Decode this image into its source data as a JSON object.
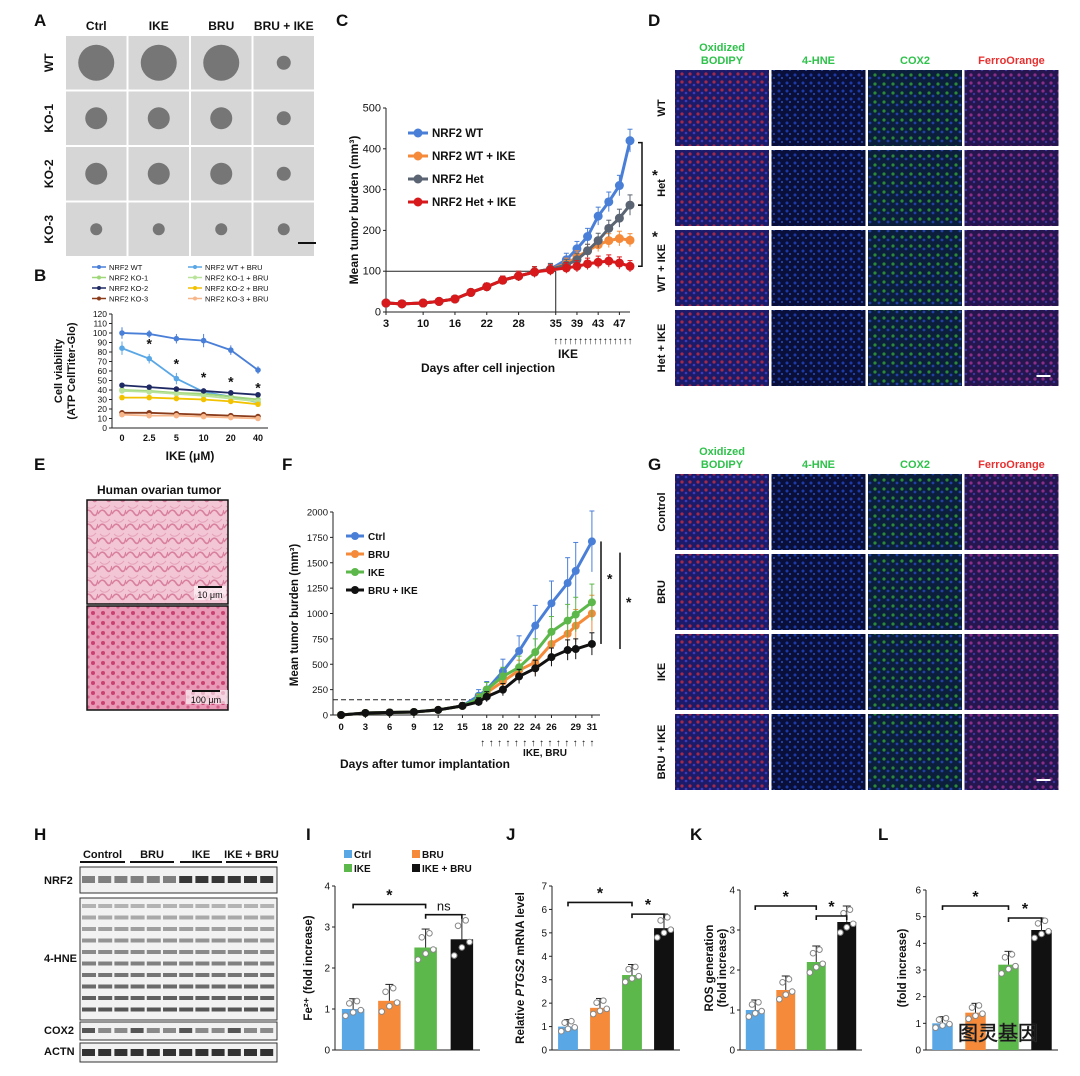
{
  "panel_letters": [
    "A",
    "B",
    "C",
    "D",
    "E",
    "F",
    "G",
    "H",
    "I",
    "J",
    "K",
    "L"
  ],
  "colors": {
    "blue": "#4a7fd8",
    "lightblue": "#5aa7e6",
    "orange": "#f58b3a",
    "gray": "#5a6472",
    "red": "#d7191c",
    "green": "#5cb84a",
    "black": "#111111",
    "yellow": "#f2c100",
    "navy": "#1f2a64",
    "brown": "#8a3b1a",
    "lightgreen": "#9fd67a",
    "peach": "#f7b58a",
    "bar_blue": "#5aa7e6",
    "bar_orange": "#f58b3a",
    "bar_green": "#5cb84a",
    "bar_black": "#111111"
  },
  "panelA": {
    "columns": [
      "Ctrl",
      "IKE",
      "BRU",
      "BRU + IKE"
    ],
    "rows": [
      "WT",
      "KO-1",
      "KO-2",
      "KO-3"
    ],
    "image_descriptions": "spheroid brightfield micrographs"
  },
  "panelD": {
    "columns": [
      "Oxidized BODIPY",
      "4-HNE",
      "COX2",
      "FerroOrange"
    ],
    "column_lines": [
      [
        "Oxidized",
        "BODIPY"
      ],
      [
        "4-HNE"
      ],
      [
        "COX2"
      ],
      [
        "FerroOrange"
      ]
    ],
    "rows": [
      "WT",
      "Het",
      "WT + IKE",
      "Het + IKE"
    ]
  },
  "panelE": {
    "title": "Human ovarian tumor",
    "scalebars": [
      "10 μm",
      "100 μm"
    ]
  },
  "panelG": {
    "columns": [
      "Oxidized BODIPY",
      "4-HNE",
      "COX2",
      "FerroOrange"
    ],
    "column_lines": [
      [
        "Oxidized",
        "BODIPY"
      ],
      [
        "4-HNE"
      ],
      [
        "COX2"
      ],
      [
        "FerroOrange"
      ]
    ],
    "rows": [
      "Control",
      "BRU",
      "IKE",
      "BRU + IKE"
    ]
  },
  "panelH": {
    "groups": [
      "Control",
      "BRU",
      "IKE",
      "IKE + BRU"
    ],
    "bands": [
      "NRF2",
      "4-HNE",
      "COX2",
      "ACTN"
    ]
  },
  "watermark": "图灵基因",
  "chart_data": [
    {
      "panel": "B",
      "type": "line",
      "x": [
        0,
        2.5,
        5,
        10,
        20,
        40
      ],
      "categories": [
        "0",
        "2.5",
        "5",
        "10",
        "20",
        "40"
      ],
      "xlabel": "IKE (μM)",
      "ylabel_lines": [
        "Cell viability",
        "(ATP CellTiter-Glo)"
      ],
      "ylim": [
        0,
        120
      ],
      "yticks": [
        0,
        10,
        20,
        30,
        40,
        50,
        60,
        70,
        80,
        90,
        100,
        110,
        120
      ],
      "legend_cols": [
        [
          "NRF2 WT",
          "NRF2 KO-1",
          "NRF2 KO-2",
          "NRF2 KO-3"
        ],
        [
          "NRF2 WT + BRU",
          "NRF2 KO-1 + BRU",
          "NRF2 KO-2 + BRU",
          "NRF2 KO-3 + BRU"
        ]
      ],
      "series": [
        {
          "name": "NRF2 WT",
          "color": "#4a7fd8",
          "values": [
            100,
            99,
            94,
            92,
            82,
            61
          ],
          "err": [
            6,
            4,
            5,
            7,
            5,
            4
          ]
        },
        {
          "name": "NRF2 WT + BRU",
          "color": "#5aa7e6",
          "values": [
            84,
            73,
            52,
            38,
            33,
            27
          ],
          "err": [
            7,
            5,
            6,
            3,
            3,
            3
          ]
        },
        {
          "name": "NRF2 KO-1",
          "color": "#9fd67a",
          "values": [
            40,
            39,
            37,
            36,
            33,
            30
          ],
          "err": [
            2,
            2,
            2,
            2,
            2,
            2
          ]
        },
        {
          "name": "NRF2 KO-1 + BRU",
          "color": "#b9e29a",
          "values": [
            39,
            38,
            36,
            34,
            31,
            28
          ],
          "err": [
            2,
            2,
            2,
            2,
            2,
            2
          ]
        },
        {
          "name": "NRF2 KO-2",
          "color": "#1f2a64",
          "values": [
            45,
            43,
            41,
            39,
            37,
            35
          ],
          "err": [
            2,
            2,
            2,
            2,
            2,
            2
          ]
        },
        {
          "name": "NRF2 KO-2 + BRU",
          "color": "#f2c100",
          "values": [
            32,
            32,
            31,
            30,
            28,
            25
          ],
          "err": [
            2,
            2,
            2,
            2,
            2,
            2
          ]
        },
        {
          "name": "NRF2 KO-3",
          "color": "#8a3b1a",
          "values": [
            16,
            16,
            15,
            14,
            13,
            12
          ],
          "err": [
            1,
            1,
            1,
            1,
            1,
            1
          ]
        },
        {
          "name": "NRF2 KO-3 + BRU",
          "color": "#f7b58a",
          "values": [
            14,
            13,
            13,
            12,
            11,
            10
          ],
          "err": [
            1,
            1,
            1,
            1,
            1,
            1
          ]
        }
      ],
      "annotations": [
        "*",
        "*",
        "*",
        "*",
        "*"
      ]
    },
    {
      "panel": "C",
      "type": "line",
      "x": [
        3,
        6,
        10,
        13,
        16,
        19,
        22,
        25,
        28,
        31,
        34,
        37,
        39,
        41,
        43,
        45,
        47,
        49
      ],
      "xtick_labels": [
        "3",
        "10",
        "16",
        "22",
        "28",
        "35",
        "39",
        "43",
        "47"
      ],
      "xtick_values": [
        3,
        10,
        16,
        22,
        28,
        35,
        39,
        43,
        47
      ],
      "xlabel": "Days after cell injection",
      "treatment_label": "IKE",
      "ylabel": "Mean tumor burden (mm³)",
      "ylim": [
        0,
        500
      ],
      "yticks": [
        0,
        100,
        200,
        300,
        400,
        500
      ],
      "series": [
        {
          "name": "NRF2 WT",
          "color": "#4a7fd8",
          "values": [
            22,
            20,
            22,
            26,
            32,
            48,
            62,
            78,
            88,
            98,
            105,
            128,
            155,
            185,
            235,
            270,
            310,
            420
          ],
          "err": [
            5,
            5,
            5,
            5,
            6,
            7,
            9,
            10,
            12,
            13,
            14,
            16,
            18,
            20,
            22,
            24,
            25,
            28
          ]
        },
        {
          "name": "NRF2 WT + IKE",
          "color": "#f58b3a",
          "values": [
            22,
            20,
            22,
            26,
            32,
            48,
            62,
            78,
            88,
            98,
            105,
            118,
            135,
            150,
            165,
            175,
            180,
            176
          ],
          "err": [
            5,
            5,
            5,
            5,
            6,
            7,
            9,
            10,
            12,
            13,
            14,
            14,
            15,
            16,
            17,
            17,
            18,
            16
          ]
        },
        {
          "name": "NRF2 Het",
          "color": "#5a6472",
          "values": [
            22,
            20,
            22,
            26,
            32,
            48,
            62,
            78,
            88,
            98,
            105,
            115,
            128,
            150,
            175,
            205,
            230,
            262
          ],
          "err": [
            5,
            5,
            5,
            5,
            6,
            7,
            9,
            10,
            12,
            13,
            14,
            14,
            15,
            16,
            18,
            20,
            22,
            25
          ]
        },
        {
          "name": "NRF2 Het + IKE",
          "color": "#d7191c",
          "values": [
            22,
            20,
            22,
            26,
            32,
            48,
            62,
            78,
            88,
            98,
            103,
            108,
            112,
            118,
            122,
            125,
            120,
            112
          ],
          "err": [
            5,
            5,
            5,
            5,
            6,
            7,
            9,
            10,
            12,
            13,
            13,
            13,
            14,
            14,
            15,
            15,
            15,
            14
          ]
        }
      ],
      "annotations": [
        "*",
        "*"
      ]
    },
    {
      "panel": "F",
      "type": "line",
      "x": [
        0,
        3,
        6,
        9,
        12,
        15,
        17,
        18,
        20,
        22,
        24,
        26,
        28,
        29,
        31
      ],
      "xtick_labels": [
        "0",
        "3",
        "6",
        "9",
        "12",
        "15",
        "18",
        "20",
        "22",
        "24",
        "26",
        "29",
        "31"
      ],
      "xtick_values": [
        0,
        3,
        6,
        9,
        12,
        15,
        18,
        20,
        22,
        24,
        26,
        29,
        31
      ],
      "xlabel": "Days after tumor implantation",
      "treatment_label": "IKE, BRU",
      "ylabel": "Mean tumor burden (mm³)",
      "ylim": [
        0,
        2000
      ],
      "yticks": [
        0,
        250,
        500,
        750,
        1000,
        1250,
        1500,
        1750,
        2000
      ],
      "series": [
        {
          "name": "Ctrl",
          "color": "#4a7fd8",
          "values": [
            0,
            20,
            25,
            30,
            50,
            90,
            190,
            250,
            430,
            630,
            880,
            1100,
            1300,
            1420,
            1710
          ],
          "err": [
            5,
            10,
            10,
            15,
            20,
            30,
            60,
            80,
            120,
            150,
            200,
            220,
            250,
            280,
            300
          ]
        },
        {
          "name": "BRU",
          "color": "#f58b3a",
          "values": [
            0,
            20,
            25,
            30,
            50,
            90,
            150,
            220,
            330,
            440,
            520,
            700,
            800,
            880,
            1000
          ],
          "err": [
            5,
            10,
            10,
            15,
            20,
            30,
            50,
            60,
            80,
            100,
            120,
            140,
            150,
            160,
            180
          ]
        },
        {
          "name": "IKE",
          "color": "#5cb84a",
          "values": [
            0,
            20,
            25,
            30,
            50,
            90,
            160,
            250,
            380,
            470,
            620,
            820,
            930,
            990,
            1110
          ],
          "err": [
            5,
            10,
            10,
            15,
            20,
            30,
            50,
            70,
            90,
            110,
            130,
            150,
            160,
            170,
            180
          ]
        },
        {
          "name": "BRU + IKE",
          "color": "#111111",
          "values": [
            0,
            20,
            25,
            30,
            50,
            90,
            130,
            180,
            250,
            380,
            460,
            570,
            640,
            650,
            700
          ],
          "err": [
            5,
            10,
            10,
            15,
            20,
            30,
            40,
            50,
            60,
            70,
            80,
            90,
            100,
            100,
            110
          ]
        }
      ],
      "annotations": [
        "*",
        "*"
      ]
    },
    {
      "panel": "I",
      "type": "bar",
      "categories": [
        "Ctrl",
        "BRU",
        "IKE",
        "IKE + BRU"
      ],
      "legend_labels": [
        "Ctrl",
        "BRU",
        "IKE",
        "IKE + BRU"
      ],
      "values": [
        1.0,
        1.2,
        2.5,
        2.7
      ],
      "err": [
        0.25,
        0.4,
        0.45,
        0.6
      ],
      "ylabel": "Fe²⁺ (fold increase)",
      "ylim": [
        0,
        4
      ],
      "yticks": [
        0,
        1,
        2,
        3,
        4
      ],
      "annotations": [
        "*",
        "ns"
      ]
    },
    {
      "panel": "J",
      "type": "bar",
      "categories": [
        "Ctrl",
        "BRU",
        "IKE",
        "IKE + BRU"
      ],
      "values": [
        1.0,
        1.8,
        3.2,
        5.2
      ],
      "err": [
        0.3,
        0.4,
        0.45,
        0.6
      ],
      "ylabel_parts": [
        "Relative ",
        "PTGS2",
        " mRNA level"
      ],
      "ylim": [
        0,
        7
      ],
      "yticks": [
        0,
        1,
        2,
        3,
        4,
        5,
        6,
        7
      ],
      "annotations": [
        "*",
        "*"
      ]
    },
    {
      "panel": "K",
      "type": "bar",
      "categories": [
        "Ctrl",
        "BRU",
        "IKE",
        "IKE + BRU"
      ],
      "values": [
        1.0,
        1.5,
        2.2,
        3.2
      ],
      "err": [
        0.25,
        0.35,
        0.4,
        0.4
      ],
      "ylabel_lines": [
        "ROS generation",
        "(fold increase)"
      ],
      "ylim": [
        0,
        4
      ],
      "yticks": [
        0,
        1,
        2,
        3,
        4
      ],
      "annotations": [
        "*",
        "*"
      ]
    },
    {
      "panel": "L",
      "type": "bar",
      "categories": [
        "Ctrl",
        "BRU",
        "IKE",
        "IKE + BRU"
      ],
      "values": [
        1.0,
        1.4,
        3.2,
        4.5
      ],
      "err": [
        0.25,
        0.35,
        0.5,
        0.45
      ],
      "ylabel": "(fold increase)",
      "ylim": [
        0,
        6
      ],
      "yticks": [
        0,
        1,
        2,
        3,
        4,
        5,
        6
      ],
      "annotations": [
        "*",
        "*"
      ]
    }
  ]
}
